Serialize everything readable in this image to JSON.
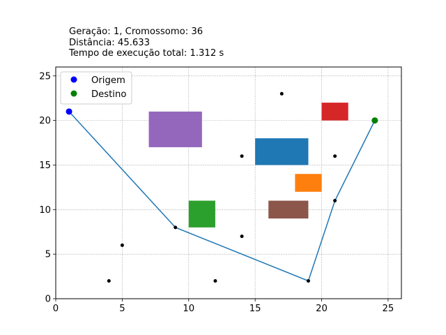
{
  "header": {
    "line1": "Geração: 1, Cromossomo: 36",
    "line2": "Distância: 45.633",
    "line3": "Tempo de execução total: 1.312 s"
  },
  "chart_data": {
    "type": "scatter",
    "xlim": [
      0,
      26
    ],
    "ylim": [
      0,
      26
    ],
    "xticks": [
      0,
      5,
      10,
      15,
      20,
      25
    ],
    "yticks": [
      0,
      5,
      10,
      15,
      20,
      25
    ],
    "grid": true,
    "legend": {
      "placement": "top-left",
      "entries": [
        {
          "label": "Origem",
          "color": "#0000ff"
        },
        {
          "label": "Destino",
          "color": "#008000"
        }
      ]
    },
    "origin": {
      "x": 1,
      "y": 21,
      "color": "#0000ff"
    },
    "destination": {
      "x": 24,
      "y": 20,
      "color": "#008000"
    },
    "waypoints": [
      {
        "x": 4,
        "y": 2
      },
      {
        "x": 5,
        "y": 6
      },
      {
        "x": 9,
        "y": 8
      },
      {
        "x": 12,
        "y": 2
      },
      {
        "x": 14,
        "y": 7
      },
      {
        "x": 14,
        "y": 16
      },
      {
        "x": 17,
        "y": 23
      },
      {
        "x": 19,
        "y": 2
      },
      {
        "x": 21,
        "y": 11
      },
      {
        "x": 21,
        "y": 16
      }
    ],
    "route": {
      "color": "#1f77b4",
      "points": [
        [
          1,
          21
        ],
        [
          9,
          8
        ],
        [
          19,
          2
        ],
        [
          21,
          11
        ],
        [
          24,
          20
        ]
      ]
    },
    "obstacles": [
      {
        "x0": 7,
        "y0": 17,
        "x1": 11,
        "y1": 21,
        "color": "#9467bd"
      },
      {
        "x0": 15,
        "y0": 15,
        "x1": 19,
        "y1": 18,
        "color": "#1f77b4"
      },
      {
        "x0": 20,
        "y0": 20,
        "x1": 22,
        "y1": 22,
        "color": "#d62728"
      },
      {
        "x0": 18,
        "y0": 12,
        "x1": 20,
        "y1": 14,
        "color": "#ff7f0e"
      },
      {
        "x0": 10,
        "y0": 8,
        "x1": 12,
        "y1": 11,
        "color": "#2ca02c"
      },
      {
        "x0": 16,
        "y0": 9,
        "x1": 19,
        "y1": 11,
        "color": "#8c564b"
      }
    ]
  }
}
